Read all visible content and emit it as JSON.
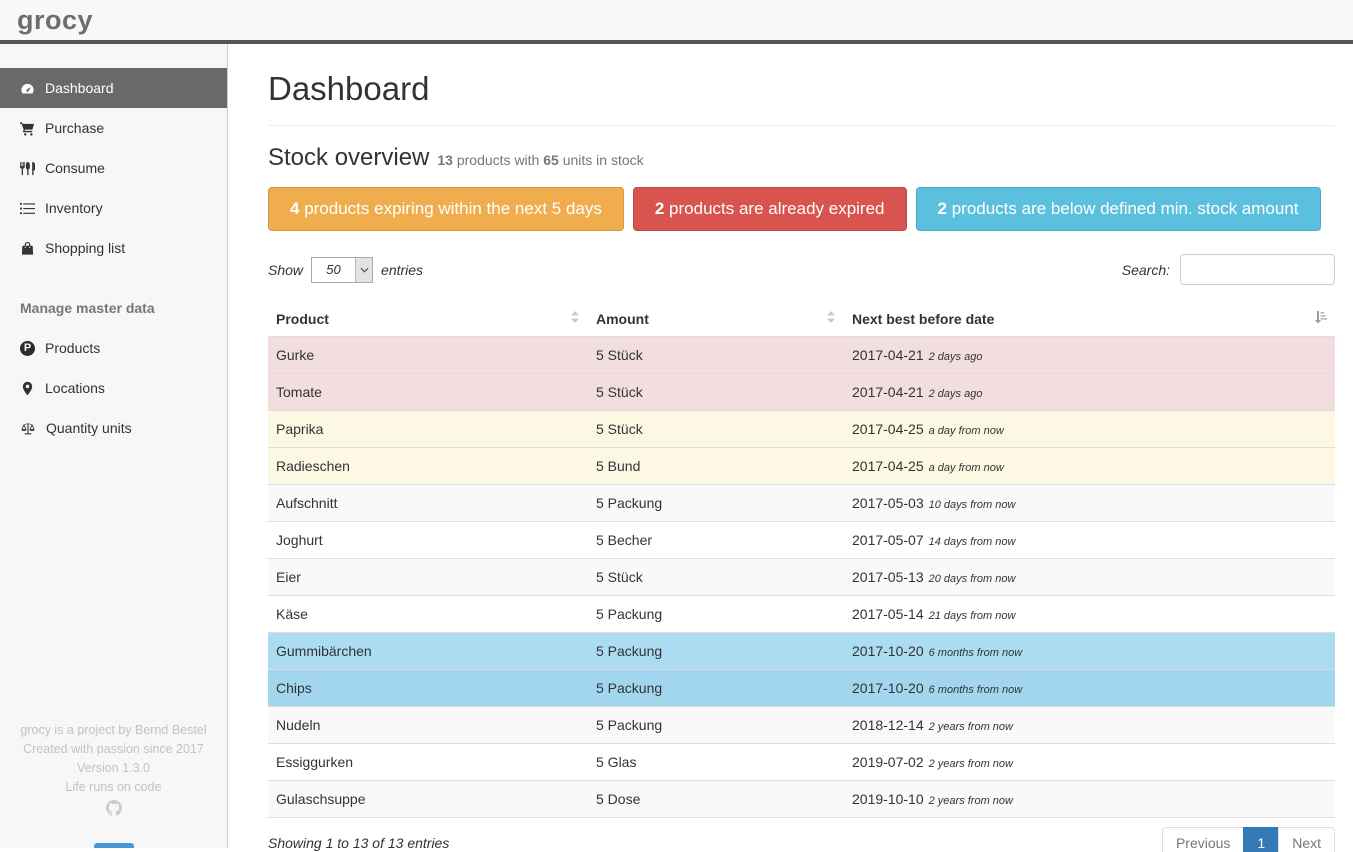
{
  "navbar": {
    "brand": "grocy"
  },
  "sidebar": {
    "items": [
      {
        "label": "Dashboard",
        "icon": "tachometer-icon",
        "active": true
      },
      {
        "label": "Purchase",
        "icon": "shopping-cart-icon",
        "active": false
      },
      {
        "label": "Consume",
        "icon": "utensils-icon",
        "active": false
      },
      {
        "label": "Inventory",
        "icon": "list-icon",
        "active": false
      },
      {
        "label": "Shopping list",
        "icon": "shopping-bag-icon",
        "active": false
      }
    ],
    "section_header": "Manage master data",
    "master_items": [
      {
        "label": "Products",
        "icon": "product-p-icon"
      },
      {
        "label": "Locations",
        "icon": "map-marker-icon"
      },
      {
        "label": "Quantity units",
        "icon": "balance-scale-icon"
      }
    ],
    "footer": {
      "line1": "grocy is a project by Bernd Bestel",
      "line2": "Created with passion since 2017",
      "line3": "Version 1.3.0",
      "line4": "Life runs on code",
      "icon": "github-icon"
    }
  },
  "main": {
    "title": "Dashboard",
    "stock_overview": {
      "heading": "Stock overview",
      "products_count": "13",
      "products_text": " products with ",
      "units_count": "65",
      "units_text": " units in stock"
    },
    "alerts": [
      {
        "count": "4",
        "text": " products expiring within the next 5 days",
        "color": "#f0ad4e"
      },
      {
        "count": "2",
        "text": " products are already expired",
        "color": "#d9534f"
      },
      {
        "count": "2",
        "text": " products are below defined min. stock amount",
        "color": "#5bc0de"
      }
    ],
    "table_controls": {
      "show_label": "Show",
      "entries_value": "50",
      "entries_label": "entries",
      "search_label": "Search:"
    },
    "table": {
      "columns": [
        "Product",
        "Amount",
        "Next best before date"
      ],
      "rows": [
        {
          "product": "Gurke",
          "amount": "5 Stück",
          "date": "2017-04-21",
          "timeago": "2 days ago",
          "status": "expired"
        },
        {
          "product": "Tomate",
          "amount": "5 Stück",
          "date": "2017-04-21",
          "timeago": "2 days ago",
          "status": "expired"
        },
        {
          "product": "Paprika",
          "amount": "5 Stück",
          "date": "2017-04-25",
          "timeago": "a day from now",
          "status": "expiring"
        },
        {
          "product": "Radieschen",
          "amount": "5 Bund",
          "date": "2017-04-25",
          "timeago": "a day from now",
          "status": "expiring"
        },
        {
          "product": "Aufschnitt",
          "amount": "5 Packung",
          "date": "2017-05-03",
          "timeago": "10 days from now",
          "status": "none"
        },
        {
          "product": "Joghurt",
          "amount": "5 Becher",
          "date": "2017-05-07",
          "timeago": "14 days from now",
          "status": "none"
        },
        {
          "product": "Eier",
          "amount": "5 Stück",
          "date": "2017-05-13",
          "timeago": "20 days from now",
          "status": "none"
        },
        {
          "product": "Käse",
          "amount": "5 Packung",
          "date": "2017-05-14",
          "timeago": "21 days from now",
          "status": "none"
        },
        {
          "product": "Gummibärchen",
          "amount": "5 Packung",
          "date": "2017-10-20",
          "timeago": "6 months from now",
          "status": "belowmin"
        },
        {
          "product": "Chips",
          "amount": "5 Packung",
          "date": "2017-10-20",
          "timeago": "6 months from now",
          "status": "belowmin"
        },
        {
          "product": "Nudeln",
          "amount": "5 Packung",
          "date": "2018-12-14",
          "timeago": "2 years from now",
          "status": "none"
        },
        {
          "product": "Essiggurken",
          "amount": "5 Glas",
          "date": "2019-07-02",
          "timeago": "2 years from now",
          "status": "none"
        },
        {
          "product": "Gulaschsuppe",
          "amount": "5 Dose",
          "date": "2019-10-10",
          "timeago": "2 years from now",
          "status": "none"
        }
      ]
    },
    "table_footer": {
      "info": "Showing 1 to 13 of 13 entries",
      "pagination": {
        "previous": "Previous",
        "page": "1",
        "next": "Next"
      }
    }
  },
  "colors": {
    "alert_warning": "#f0ad4e",
    "alert_danger": "#d9534f",
    "alert_info": "#5bc0de",
    "row_expired": "#f2dede",
    "row_expiring": "#fcf8e3",
    "row_belowmin": "#abdcf2",
    "pagination_active": "#337ab7",
    "sidebar_active": "#696969"
  }
}
